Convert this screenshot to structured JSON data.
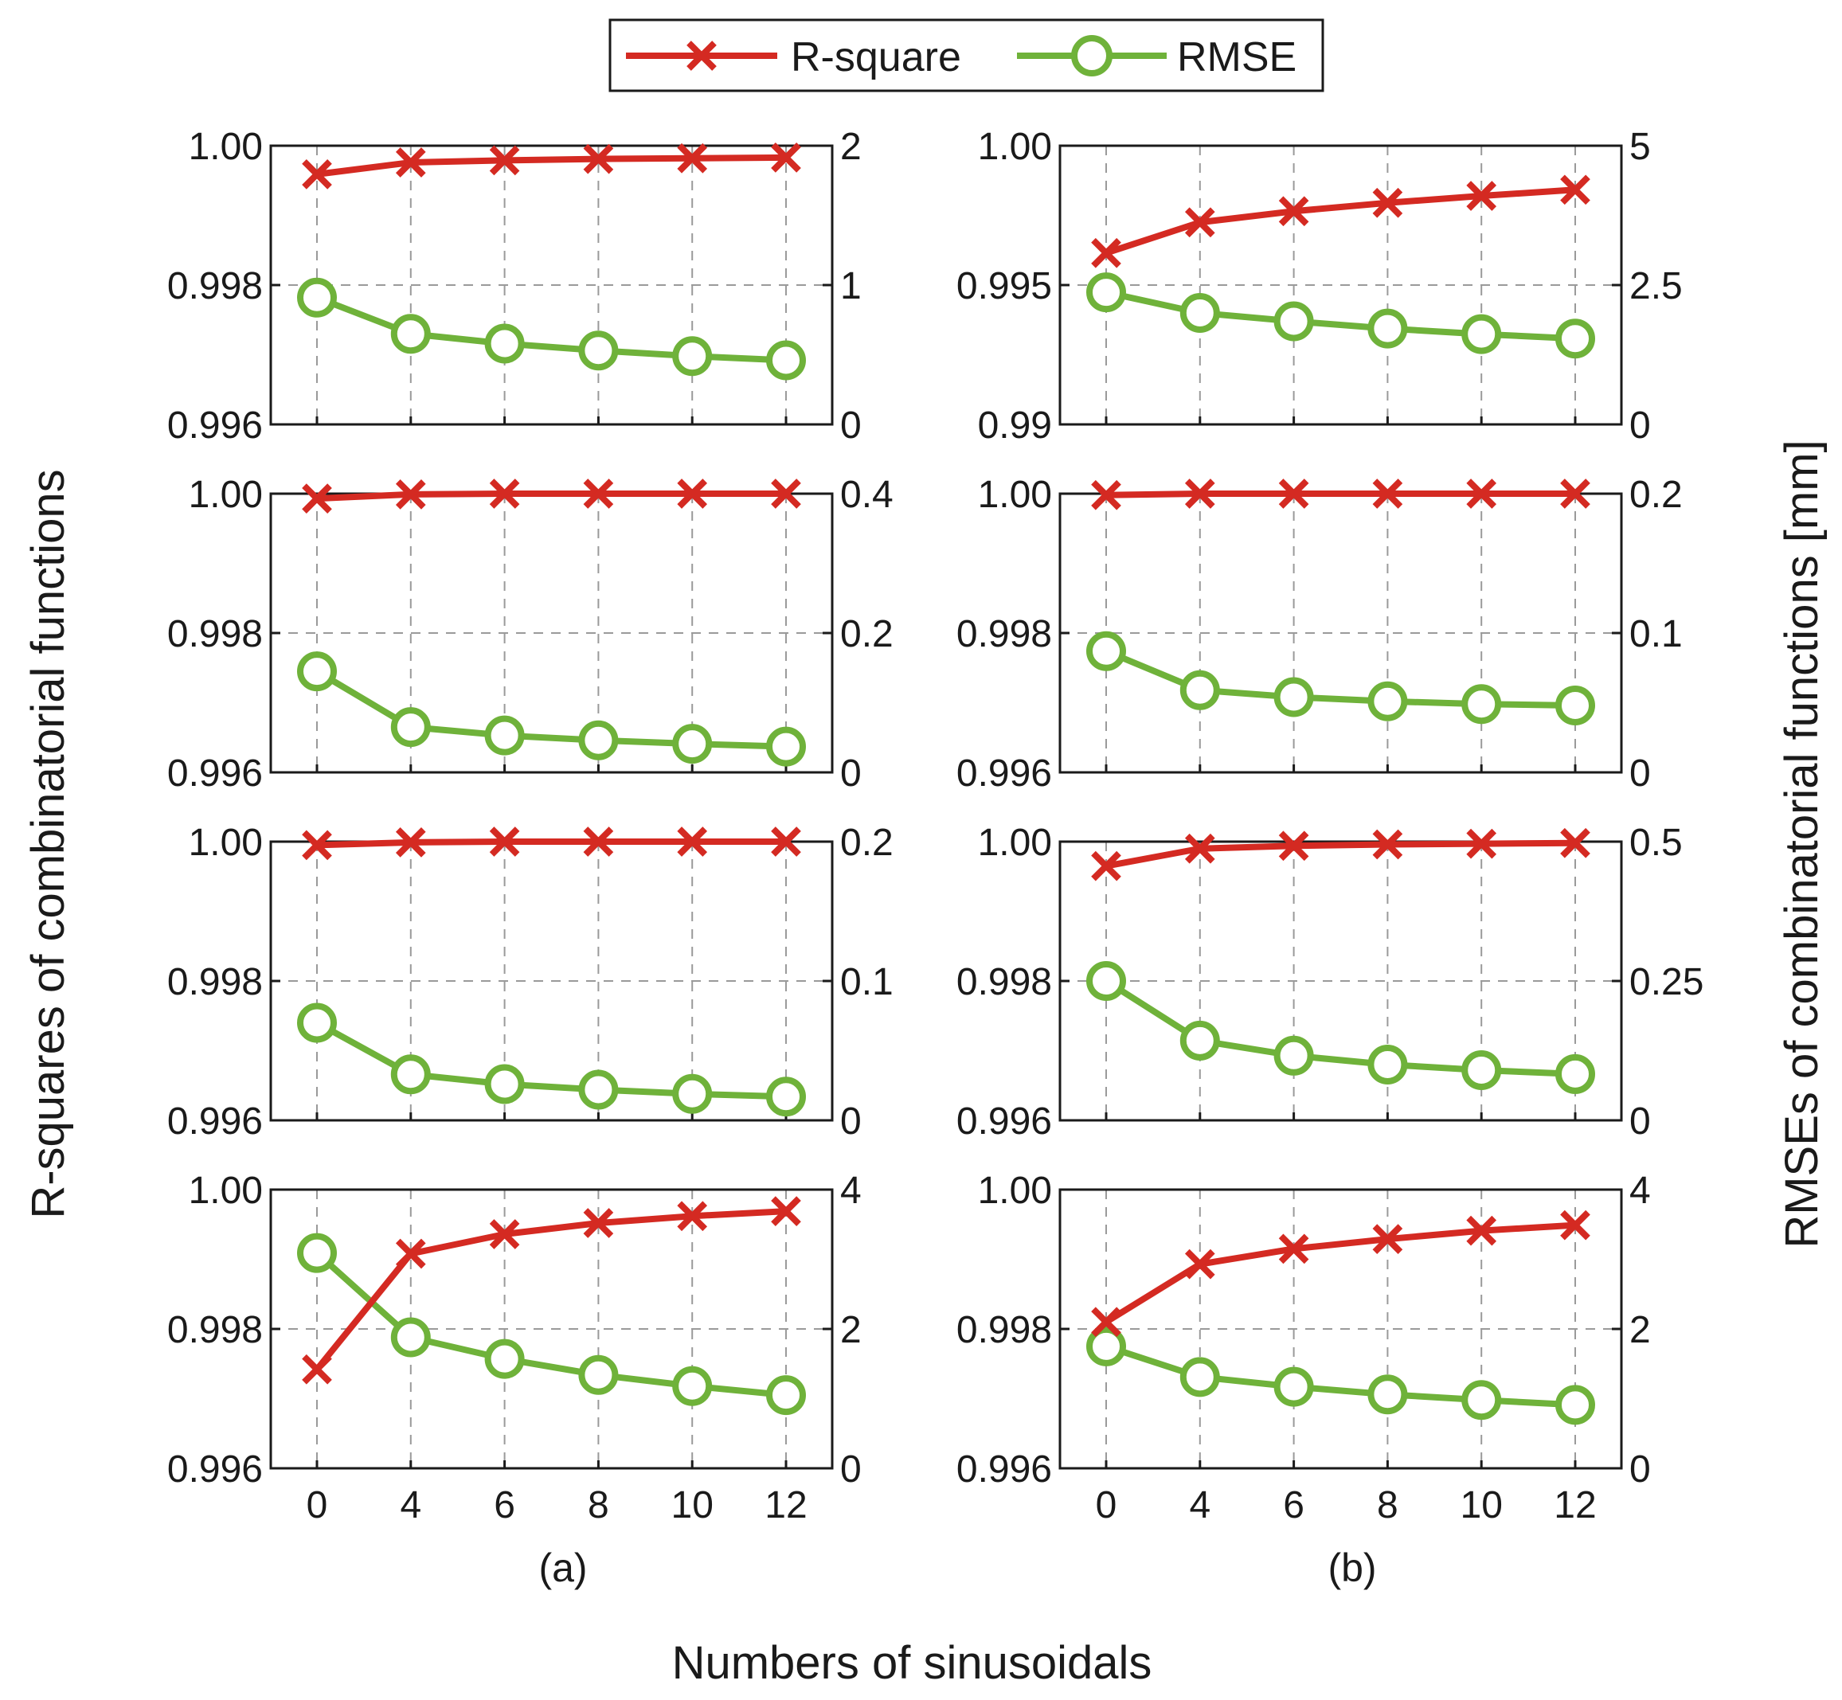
{
  "chart_data": {
    "type": "line",
    "x": [
      0,
      4,
      6,
      8,
      10,
      12
    ],
    "x_tick_labels": [
      "0",
      "4",
      "6",
      "8",
      "10",
      "12"
    ],
    "xlabel": "Numbers of sinusoidals",
    "ylabel_left": "R-squares of combinatorial functions",
    "ylabel_right": "RMSEs of combinatorial functions [mm]",
    "legend": {
      "placement": "top-center",
      "entries": [
        {
          "name": "R-square",
          "color": "#d42a22",
          "marker": "x"
        },
        {
          "name": "RMSE",
          "color": "#6fb23a",
          "marker": "circle"
        }
      ]
    },
    "grid": true,
    "columns": [
      {
        "label": "(a)",
        "panels": [
          {
            "left_ylim": [
              0.996,
              1.0
            ],
            "left_ticks": [
              "1.00",
              "0.998",
              "0.996"
            ],
            "right_ylim": [
              0,
              2
            ],
            "right_ticks": [
              "2",
              "1",
              "0"
            ],
            "r_square": [
              0.99959,
              0.99976,
              0.99979,
              0.99981,
              0.99982,
              0.99983
            ],
            "rmse": [
              0.91,
              0.65,
              0.58,
              0.53,
              0.49,
              0.46
            ]
          },
          {
            "left_ylim": [
              0.996,
              1.0
            ],
            "left_ticks": [
              "1.00",
              "0.998",
              "0.996"
            ],
            "right_ylim": [
              0,
              0.4
            ],
            "right_ticks": [
              "0.4",
              "0.2",
              "0"
            ],
            "r_square": [
              0.99993,
              0.99999,
              1.0,
              1.0,
              1.0,
              1.0
            ],
            "rmse": [
              0.145,
              0.065,
              0.053,
              0.046,
              0.041,
              0.037
            ]
          },
          {
            "left_ylim": [
              0.996,
              1.0
            ],
            "left_ticks": [
              "1.00",
              "0.998",
              "0.996"
            ],
            "right_ylim": [
              0,
              0.2
            ],
            "right_ticks": [
              "0.2",
              "0.1",
              "0"
            ],
            "r_square": [
              0.99995,
              0.99999,
              1.0,
              1.0,
              1.0,
              1.0
            ],
            "rmse": [
              0.07,
              0.033,
              0.026,
              0.022,
              0.019,
              0.017
            ]
          },
          {
            "left_ylim": [
              0.996,
              1.0
            ],
            "left_ticks": [
              "1.00",
              "0.998",
              "0.996"
            ],
            "right_ylim": [
              0,
              4
            ],
            "right_ticks": [
              "4",
              "2",
              "0"
            ],
            "r_square": [
              0.99742,
              0.99908,
              0.99936,
              0.99952,
              0.99962,
              0.99969
            ],
            "rmse": [
              3.09,
              1.88,
              1.57,
              1.34,
              1.18,
              1.05
            ]
          }
        ]
      },
      {
        "label": "(b)",
        "panels": [
          {
            "left_ylim": [
              0.99,
              1.0
            ],
            "left_ticks": [
              "1.00",
              "0.995",
              "0.99"
            ],
            "right_ylim": [
              0,
              5
            ],
            "right_ticks": [
              "5",
              "2.5",
              "0"
            ],
            "r_square": [
              0.99615,
              0.99725,
              0.99765,
              0.99795,
              0.9982,
              0.99842
            ],
            "rmse": [
              2.37,
              2.0,
              1.85,
              1.72,
              1.62,
              1.54
            ]
          },
          {
            "left_ylim": [
              0.996,
              1.0
            ],
            "left_ticks": [
              "1.00",
              "0.998",
              "0.996"
            ],
            "right_ylim": [
              0,
              0.2
            ],
            "right_ticks": [
              "0.2",
              "0.1",
              "0"
            ],
            "r_square": [
              0.99998,
              1.0,
              1.0,
              1.0,
              1.0,
              1.0
            ],
            "rmse": [
              0.087,
              0.059,
              0.054,
              0.051,
              0.049,
              0.048
            ]
          },
          {
            "left_ylim": [
              0.996,
              1.0
            ],
            "left_ticks": [
              "1.00",
              "0.998",
              "0.996"
            ],
            "right_ylim": [
              0,
              0.5
            ],
            "right_ticks": [
              "0.5",
              "0.25",
              "0"
            ],
            "r_square": [
              0.99965,
              0.9999,
              0.99994,
              0.99996,
              0.99997,
              0.99998
            ],
            "rmse": [
              0.25,
              0.143,
              0.116,
              0.1,
              0.09,
              0.083
            ]
          },
          {
            "left_ylim": [
              0.996,
              1.0
            ],
            "left_ticks": [
              "1.00",
              "0.998",
              "0.996"
            ],
            "right_ylim": [
              0,
              4
            ],
            "right_ticks": [
              "4",
              "2",
              "0"
            ],
            "r_square": [
              0.9981,
              0.99893,
              0.99915,
              0.99929,
              0.99941,
              0.99949
            ],
            "rmse": [
              1.75,
              1.31,
              1.17,
              1.06,
              0.98,
              0.91
            ]
          }
        ]
      }
    ]
  }
}
